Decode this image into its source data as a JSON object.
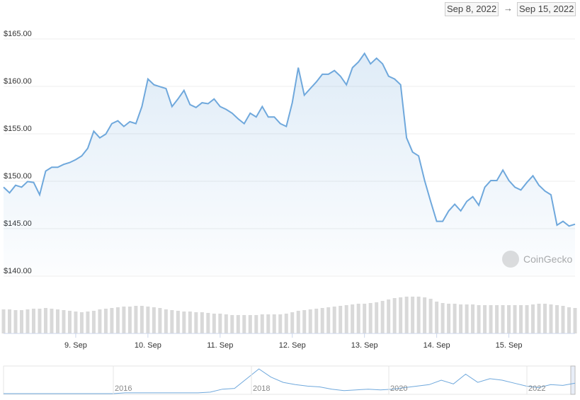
{
  "date_range": {
    "from": "Sep 8, 2022",
    "separator": "→",
    "to": "Sep 15, 2022"
  },
  "watermark": "CoinGecko",
  "chart_data": {
    "type": "line",
    "categories": [
      null,
      null,
      null,
      null,
      null,
      null,
      null,
      null,
      null,
      null,
      null,
      null,
      "9. Sep",
      null,
      null,
      null,
      null,
      null,
      null,
      null,
      null,
      null,
      null,
      null,
      "10. Sep",
      null,
      null,
      null,
      null,
      null,
      null,
      null,
      null,
      null,
      null,
      null,
      "11. Sep",
      null,
      null,
      null,
      null,
      null,
      null,
      null,
      null,
      null,
      null,
      null,
      "12. Sep",
      null,
      null,
      null,
      null,
      null,
      null,
      null,
      null,
      null,
      null,
      null,
      "13. Sep",
      null,
      null,
      null,
      null,
      null,
      null,
      null,
      null,
      null,
      null,
      null,
      "14. Sep",
      null,
      null,
      null,
      null,
      null,
      null,
      null,
      null,
      null,
      null,
      null,
      "15. Sep",
      null,
      null,
      null,
      null,
      null,
      null,
      null,
      null,
      null,
      null,
      null
    ],
    "series": [
      {
        "color": "#6fa8dc",
        "values": [
          149.0,
          148.4,
          149.2,
          149.0,
          149.6,
          149.5,
          148.2,
          150.7,
          151.1,
          151.1,
          151.4,
          151.6,
          151.9,
          152.3,
          153.1,
          154.9,
          154.2,
          154.6,
          155.7,
          156.0,
          155.4,
          155.9,
          155.7,
          157.5,
          160.4,
          159.8,
          159.6,
          159.4,
          157.5,
          158.3,
          159.2,
          157.7,
          157.4,
          157.9,
          157.8,
          158.3,
          157.5,
          157.2,
          156.8,
          156.2,
          155.7,
          156.8,
          156.4,
          157.5,
          156.4,
          156.4,
          155.7,
          155.4,
          157.9,
          161.6,
          158.7,
          159.4,
          160.1,
          160.9,
          160.9,
          161.3,
          160.7,
          159.8,
          161.6,
          162.2,
          163.1,
          162.0,
          162.6,
          162.0,
          160.7,
          160.4,
          159.8,
          154.2,
          152.7,
          152.3,
          149.7,
          147.5,
          145.4,
          145.4,
          146.5,
          147.2,
          146.5,
          147.5,
          148.0,
          147.1,
          149.0,
          149.7,
          149.7,
          150.8,
          149.7,
          149.0,
          148.7,
          149.5,
          150.2,
          149.2,
          148.6,
          148.2,
          145.0,
          145.4,
          144.9,
          145.1
        ]
      }
    ],
    "volume": {
      "color": "#d9d9d9",
      "ylim": [
        0,
        60
      ],
      "values": [
        34,
        34,
        33,
        33,
        34,
        35,
        35,
        36,
        35,
        34,
        33,
        32,
        31,
        30,
        31,
        32,
        34,
        35,
        36,
        37,
        38,
        38,
        39,
        39,
        38,
        37,
        36,
        34,
        33,
        32,
        31,
        31,
        30,
        30,
        29,
        28,
        28,
        27,
        26,
        26,
        26,
        26,
        26,
        27,
        27,
        27,
        27,
        28,
        30,
        32,
        33,
        34,
        35,
        36,
        37,
        38,
        39,
        40,
        41,
        42,
        42,
        43,
        44,
        46,
        48,
        50,
        51,
        52,
        52,
        52,
        51,
        49,
        45,
        43,
        42,
        42,
        41,
        41,
        41,
        40,
        40,
        40,
        40,
        40,
        40,
        40,
        40,
        40,
        41,
        42,
        42,
        41,
        40,
        39,
        37,
        36
      ]
    },
    "ylim": [
      140,
      165
    ],
    "yticks": [
      {
        "value": 140,
        "label": "$140.00"
      },
      {
        "value": 145,
        "label": "$145.00"
      },
      {
        "value": 150,
        "label": "$150.00"
      },
      {
        "value": 155,
        "label": "$155.00"
      },
      {
        "value": 160,
        "label": "$160.00"
      },
      {
        "value": 165,
        "label": "$165.00"
      }
    ],
    "grid": true
  },
  "navigator": {
    "labels": [
      "2016",
      "2018",
      "2020",
      "2022"
    ],
    "ylim": [
      0,
      35
    ],
    "values": [
      0,
      0,
      0,
      0,
      0,
      0,
      0,
      0,
      0,
      0,
      1,
      1,
      1,
      1,
      1,
      1,
      1,
      2,
      6,
      7,
      20,
      33,
      22,
      15,
      12,
      10,
      9,
      6,
      4,
      5,
      6,
      5,
      6,
      8,
      10,
      12,
      18,
      13,
      26,
      15,
      20,
      18,
      14,
      10,
      8,
      12,
      11,
      14
    ]
  }
}
